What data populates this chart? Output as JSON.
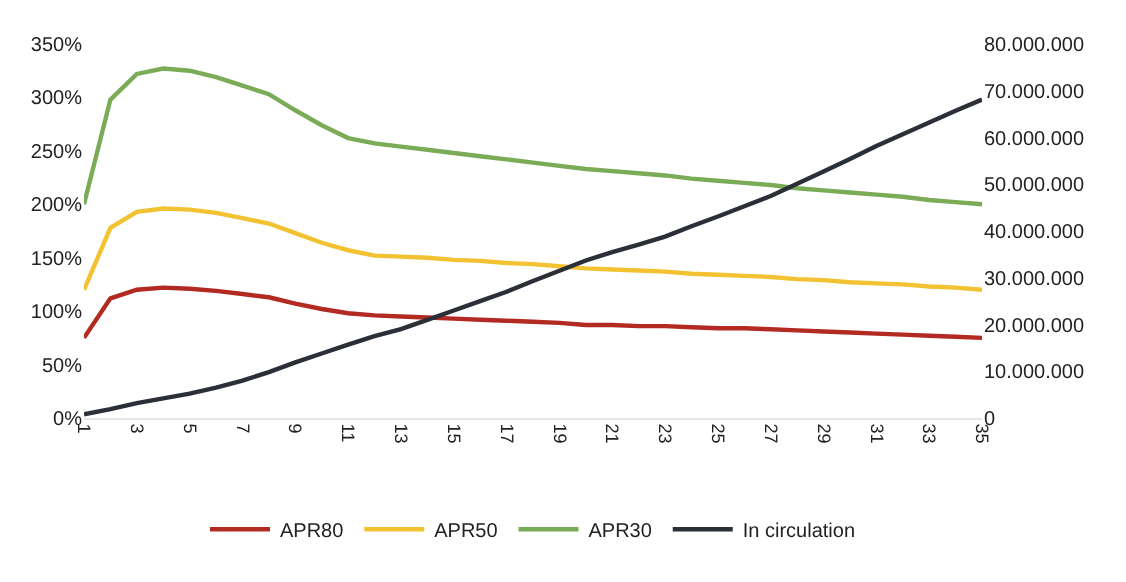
{
  "chart_data": {
    "type": "line",
    "x": [
      1,
      2,
      3,
      4,
      5,
      6,
      7,
      8,
      9,
      10,
      11,
      12,
      13,
      14,
      15,
      16,
      17,
      18,
      19,
      20,
      21,
      22,
      23,
      24,
      25,
      26,
      27,
      28,
      29,
      30,
      31,
      32,
      33,
      34,
      35
    ],
    "xlim": [
      1,
      35
    ],
    "xticks": [
      1,
      3,
      5,
      7,
      9,
      11,
      13,
      15,
      17,
      19,
      21,
      23,
      25,
      27,
      29,
      31,
      33,
      35
    ],
    "ylim": [
      0,
      350
    ],
    "yticks": [
      {
        "value": 0,
        "label": "0%"
      },
      {
        "value": 50,
        "label": "50%"
      },
      {
        "value": 100,
        "label": "100%"
      },
      {
        "value": 150,
        "label": "150%"
      },
      {
        "value": 200,
        "label": "200%"
      },
      {
        "value": 250,
        "label": "250%"
      },
      {
        "value": 300,
        "label": "300%"
      },
      {
        "value": 350,
        "label": "350%"
      }
    ],
    "y2lim": [
      0,
      80000000
    ],
    "y2ticks": [
      0,
      {
        "value": 10000000,
        "label": "10.000.000"
      },
      {
        "value": 20000000,
        "label": "20.000.000"
      },
      {
        "value": 30000000,
        "label": "30.000.000"
      },
      {
        "value": 40000000,
        "label": "40.000.000"
      },
      {
        "value": 50000000,
        "label": "50.000.000"
      },
      {
        "value": 60000000,
        "label": "60.000.000"
      },
      {
        "value": 70000000,
        "label": "70.000.000"
      },
      {
        "value": 80000000,
        "label": "80.000.000"
      }
    ],
    "series": [
      {
        "name": "APR80",
        "color": "#b22a22",
        "values": [
          75,
          112,
          120,
          122,
          121,
          119,
          116,
          113,
          107,
          102,
          98,
          96,
          95,
          94,
          93,
          92,
          91,
          90,
          89,
          87,
          87,
          86,
          86,
          85,
          84,
          84,
          83,
          82,
          81,
          80,
          79,
          78,
          77,
          76,
          75
        ]
      },
      {
        "name": "APR50",
        "color": "#f2c232",
        "values": [
          120,
          178,
          193,
          196,
          195,
          192,
          187,
          182,
          173,
          164,
          157,
          152,
          151,
          150,
          148,
          147,
          145,
          144,
          142,
          140,
          139,
          138,
          137,
          135,
          134,
          133,
          132,
          130,
          129,
          127,
          126,
          125,
          123,
          122,
          120
        ]
      },
      {
        "name": "APR30",
        "color": "#7aab56",
        "values": [
          200,
          298,
          322,
          327,
          325,
          319,
          311,
          303,
          288,
          274,
          262,
          257,
          254,
          251,
          248,
          245,
          242,
          239,
          236,
          233,
          231,
          229,
          227,
          224,
          222,
          220,
          218,
          215,
          213,
          211,
          209,
          207,
          204,
          202,
          200
        ]
      },
      {
        "name": "In circulation",
        "color": "#2b2f38",
        "axis": "y2",
        "values": [
          800000,
          1900000,
          3200000,
          4200000,
          5200000,
          6500000,
          8000000,
          9800000,
          11900000,
          13800000,
          15700000,
          17500000,
          19000000,
          21000000,
          23000000,
          25000000,
          27000000,
          29300000,
          31500000,
          33700000,
          35500000,
          37100000,
          38800000,
          41000000,
          43100000,
          45300000,
          47500000,
          50100000,
          52700000,
          55400000,
          58200000,
          60700000,
          63200000,
          65700000,
          68100000
        ]
      }
    ],
    "legend": "bottom",
    "marker": "none",
    "line_style": "solid"
  }
}
